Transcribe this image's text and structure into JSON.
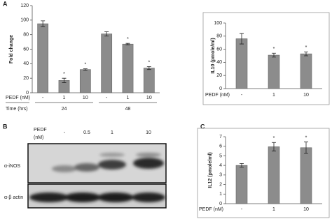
{
  "panel_labels": [
    "A",
    "B",
    "C"
  ],
  "chart_data": [
    {
      "type": "bar",
      "ylabel": "Fold change",
      "xlabel": "PEDF (nM)",
      "categories": [
        "-",
        "1",
        "10",
        "-",
        "1",
        "10"
      ],
      "values": [
        95,
        17,
        32,
        81,
        67,
        34
      ],
      "errors": [
        4,
        3,
        1,
        3,
        1,
        2
      ],
      "annotations": [
        null,
        "*",
        "*",
        null,
        "*",
        "*"
      ],
      "group_label": "Time (hrs)",
      "groups": [
        "24",
        "48"
      ],
      "ylim": [
        0,
        120
      ],
      "yticks": [
        0,
        20,
        40,
        60,
        80,
        100,
        120
      ],
      "color": "#8c8c8c",
      "frame": false
    },
    {
      "type": "bar",
      "ylabel": "IL10 (pmole/ml)",
      "xlabel": "PEDF (nM)",
      "categories": [
        "-",
        "1",
        "10"
      ],
      "values": [
        76,
        51,
        53
      ],
      "errors": [
        8,
        3,
        3
      ],
      "annotations": [
        null,
        "*",
        "*"
      ],
      "ylim": [
        0,
        100
      ],
      "yticks": [
        0,
        20,
        40,
        60,
        80,
        100
      ],
      "color": "#8c8c8c",
      "frame": true
    },
    {
      "type": "bar",
      "ylabel": "IL12 (pmole/ml)",
      "xlabel": "PEDF (nM)",
      "categories": [
        "-",
        "1",
        "10"
      ],
      "values": [
        4.0,
        5.95,
        5.85
      ],
      "errors": [
        0.2,
        0.45,
        0.6
      ],
      "annotations": [
        null,
        "*",
        "*"
      ],
      "ylim": [
        0,
        7
      ],
      "yticks": [
        0,
        1,
        2,
        3,
        4,
        5,
        6,
        7
      ],
      "color": "#8c8c8c",
      "frame": true
    }
  ],
  "blot": {
    "treatment_label": "PEDF",
    "unit_label": "(nM)",
    "lanes": [
      "-",
      "0.5",
      "1",
      "10"
    ],
    "rows": [
      "α-iNOS",
      "α-β actin"
    ]
  }
}
